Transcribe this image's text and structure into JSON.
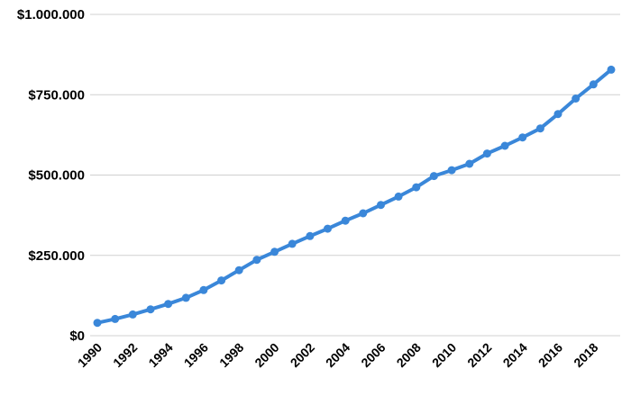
{
  "chart_data": {
    "type": "line",
    "title": "",
    "xlabel": "",
    "ylabel": "",
    "x": [
      1990,
      1991,
      1992,
      1993,
      1994,
      1995,
      1996,
      1997,
      1998,
      1999,
      2000,
      2001,
      2002,
      2003,
      2004,
      2005,
      2006,
      2007,
      2008,
      2009,
      2010,
      2011,
      2012,
      2013,
      2014,
      2015,
      2016,
      2017,
      2018,
      2019
    ],
    "series": [
      {
        "values": [
          40000,
          52000,
          66000,
          82000,
          99000,
          118000,
          142000,
          172000,
          204000,
          236000,
          261000,
          286000,
          310000,
          333000,
          358000,
          381000,
          407000,
          433000,
          462000,
          497000,
          515000,
          535000,
          567000,
          591000,
          617000,
          645000,
          690000,
          738000,
          782000,
          828000
        ]
      }
    ],
    "ylim": [
      0,
      1000000
    ],
    "y_ticks": [
      0,
      250000,
      500000,
      750000,
      1000000
    ],
    "y_tick_labels": [
      "$0",
      "$250.000",
      "$500.000",
      "$750.000",
      "$1.000.000"
    ],
    "x_tick_labels": [
      "1990",
      "1992",
      "1994",
      "1996",
      "1998",
      "2000",
      "2002",
      "2004",
      "2006",
      "2008",
      "2010",
      "2012",
      "2014",
      "2016",
      "2018"
    ],
    "x_tick_values": [
      1990,
      1992,
      1994,
      1996,
      1998,
      2000,
      2002,
      2004,
      2006,
      2008,
      2010,
      2012,
      2014,
      2016,
      2018
    ],
    "grid": true,
    "legend": "none",
    "colors": {
      "line": "#3a87d9"
    }
  }
}
